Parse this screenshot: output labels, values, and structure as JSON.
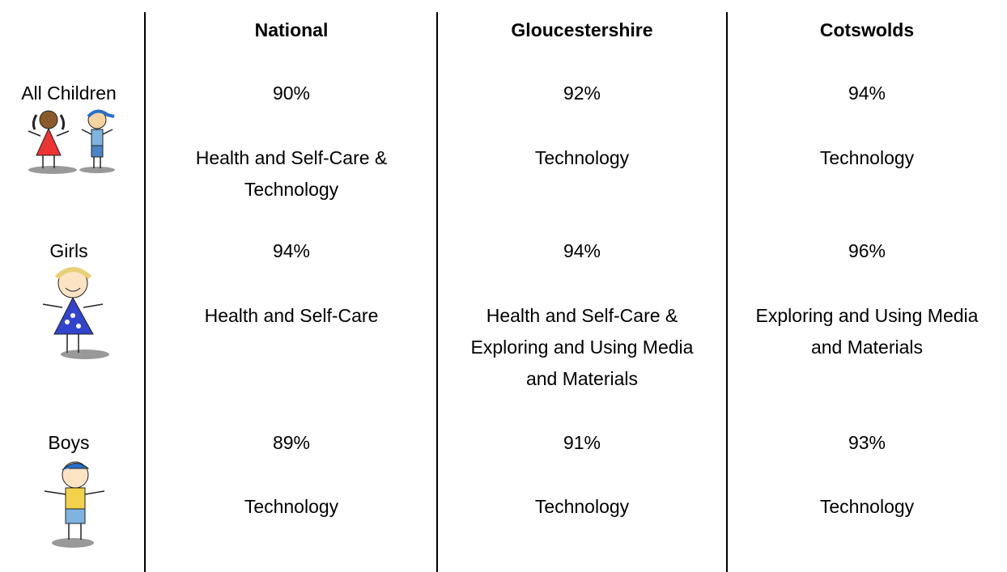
{
  "table": {
    "columns": [
      "National",
      "Gloucestershire",
      "Cotswolds"
    ],
    "rows": [
      {
        "label": "All Children",
        "values": [
          "90%",
          "92%",
          "94%"
        ],
        "subjects": [
          "Health and Self-Care & Technology",
          "Technology",
          "Technology"
        ]
      },
      {
        "label": "Girls",
        "values": [
          "94%",
          "94%",
          "96%"
        ],
        "subjects": [
          "Health and Self-Care",
          "Health and Self-Care & Exploring and Using Media and Materials",
          "Exploring and Using Media and Materials"
        ]
      },
      {
        "label": "Boys",
        "values": [
          "89%",
          "91%",
          "93%"
        ],
        "subjects": [
          "Technology",
          "Technology",
          "Technology"
        ]
      }
    ]
  }
}
